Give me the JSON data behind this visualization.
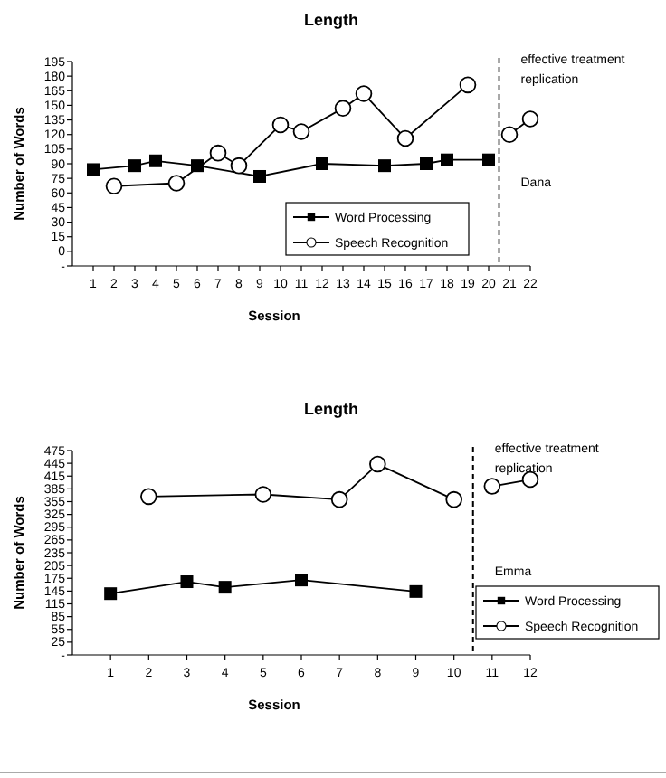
{
  "chart_data": [
    {
      "type": "line",
      "title": "Length",
      "xlabel": "Session",
      "ylabel": "Number of Words",
      "xlim": [
        0,
        22
      ],
      "xticks": [
        1,
        2,
        3,
        4,
        5,
        6,
        7,
        8,
        9,
        10,
        11,
        12,
        13,
        14,
        15,
        16,
        17,
        18,
        19,
        20,
        21,
        22
      ],
      "ylim": [
        -15,
        195
      ],
      "yticks": [
        {
          "value": -15,
          "label": "-"
        },
        0,
        15,
        30,
        45,
        60,
        75,
        90,
        105,
        120,
        135,
        150,
        165,
        180,
        195
      ],
      "legend": "bottom right",
      "grid": false,
      "series": [
        {
          "name": "Word Processing",
          "color": "#000000",
          "marker": "square",
          "x": [
            1,
            3,
            4,
            6,
            9,
            12,
            15,
            17,
            18,
            20
          ],
          "values": [
            84,
            88,
            93,
            88,
            77,
            90,
            88,
            90,
            94,
            94
          ]
        },
        {
          "name": "Speech Recognition",
          "color": "#000000",
          "marker": "circle",
          "x": [
            2,
            5,
            7,
            8,
            10,
            11,
            13,
            14,
            16,
            19,
            20,
            21,
            22
          ],
          "values": [
            67,
            70,
            101,
            88,
            130,
            123,
            147,
            162,
            116,
            171,
            null,
            120,
            136
          ]
        }
      ],
      "ref_lines": [
        {
          "axis": "x",
          "value": 20.5,
          "line_style": "dashed",
          "color": "#555555"
        }
      ],
      "annotations": [
        "effective treatment replication",
        "Dana"
      ]
    },
    {
      "type": "line",
      "title": "Length",
      "xlabel": "Session",
      "ylabel": "Number of Words",
      "xlim": [
        0,
        12
      ],
      "xticks": [
        1,
        2,
        3,
        4,
        5,
        6,
        7,
        8,
        9,
        10,
        11,
        12
      ],
      "ylim": [
        -5,
        475
      ],
      "yticks": [
        {
          "value": -5,
          "label": "-"
        },
        25,
        55,
        85,
        115,
        145,
        175,
        205,
        235,
        265,
        295,
        325,
        355,
        385,
        415,
        445,
        475
      ],
      "legend": "right",
      "grid": false,
      "series": [
        {
          "name": "Word Processing",
          "color": "#000000",
          "marker": "square",
          "x": [
            1,
            3,
            4,
            6,
            9
          ],
          "values": [
            139,
            167,
            154,
            171,
            144
          ]
        },
        {
          "name": "Speech Recognition",
          "color": "#000000",
          "marker": "circle",
          "x": [
            2,
            5,
            7,
            8,
            10,
            10.5,
            11,
            12
          ],
          "values": [
            367,
            372,
            360,
            443,
            360,
            null,
            391,
            407
          ]
        }
      ],
      "ref_lines": [
        {
          "axis": "x",
          "value": 10.5,
          "line_style": "dashed",
          "color": "#000000"
        }
      ],
      "annotations": [
        "effective treatment replication",
        "Emma"
      ]
    }
  ]
}
